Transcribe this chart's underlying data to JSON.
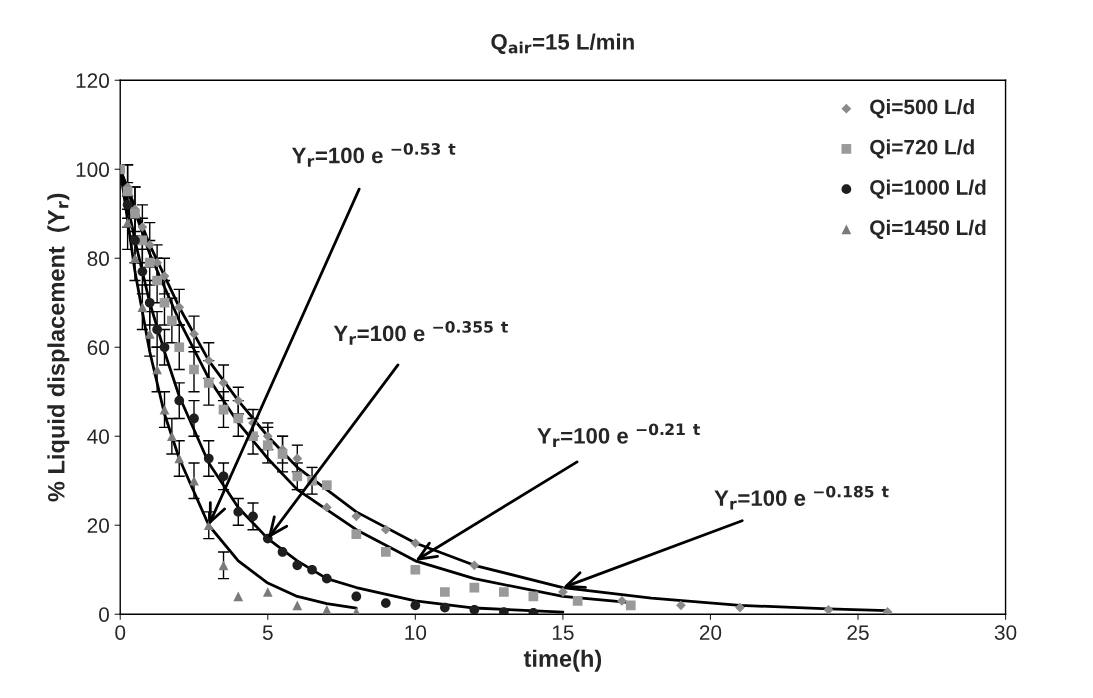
{
  "chart_data": {
    "type": "scatter",
    "title": "Q$_{air}$=15 L/min",
    "xlabel": "time(h)",
    "ylabel": "% Liquid displacement  (Y$_{r}$)",
    "xlim": [
      0,
      30
    ],
    "ylim": [
      0,
      120
    ],
    "xticks": [
      0,
      5,
      10,
      15,
      20,
      25,
      30
    ],
    "yticks": [
      0,
      20,
      40,
      60,
      80,
      100,
      120
    ],
    "grid": false,
    "legend": "top right",
    "series": [
      {
        "name": "Qi=500 L/d",
        "color": "#8a8a8a",
        "marker": "diamond",
        "x": [
          0.25,
          0.5,
          0.75,
          1,
          1.25,
          1.5,
          2,
          2.5,
          3,
          3.5,
          4,
          4.5,
          5,
          5.5,
          6,
          7,
          8,
          9,
          10,
          12,
          15,
          17,
          19,
          21,
          24,
          26
        ],
        "values": [
          96,
          91,
          87,
          83,
          79,
          76,
          69,
          63,
          57,
          52,
          48,
          43,
          40,
          37,
          35,
          24,
          22,
          19,
          16,
          11,
          5,
          3,
          2,
          1.5,
          1,
          0.5
        ],
        "errors": [
          5,
          5,
          5,
          5,
          4,
          4,
          4,
          4,
          4,
          4,
          3,
          3,
          3,
          3,
          3,
          null,
          null,
          null,
          null,
          null,
          null,
          null,
          null,
          null,
          null,
          null
        ]
      },
      {
        "name": "Qi=720 L/d",
        "color": "#9a9a9a",
        "marker": "square",
        "x": [
          0,
          0.25,
          0.5,
          0.75,
          1,
          1.25,
          1.5,
          1.75,
          2,
          2.5,
          3,
          3.5,
          4,
          4.5,
          5,
          5.5,
          6,
          6.5,
          7,
          8,
          9,
          10,
          11,
          12,
          13,
          14,
          15.5,
          17.3
        ],
        "values": [
          100,
          95,
          90,
          84,
          79,
          75,
          70,
          66,
          60,
          55,
          52,
          46,
          44,
          40,
          38,
          36,
          31,
          30,
          29,
          18,
          14,
          10,
          5,
          6,
          5,
          4,
          3,
          2
        ],
        "errors": [
          null,
          6,
          6,
          5,
          5,
          5,
          5,
          5,
          5,
          5,
          5,
          4,
          4,
          4,
          4,
          4,
          3,
          3,
          null,
          null,
          null,
          null,
          null,
          null,
          null,
          null,
          null,
          null
        ]
      },
      {
        "name": "Qi=1000 L/d",
        "color": "#1e1e1e",
        "marker": "circle",
        "x": [
          0.25,
          0.5,
          0.75,
          1,
          1.25,
          1.5,
          2,
          2.5,
          3,
          3.5,
          4,
          4.5,
          5,
          5.5,
          6,
          6.5,
          7,
          8,
          9,
          10,
          11,
          12,
          13,
          14
        ],
        "values": [
          92,
          84,
          77,
          70,
          64,
          60,
          48,
          44,
          35,
          31,
          23,
          22,
          17,
          14,
          11,
          10,
          8,
          4,
          2.5,
          2,
          1.5,
          1,
          0.5,
          0.3
        ],
        "errors": [
          5,
          5,
          5,
          5,
          4,
          4,
          4,
          4,
          4,
          3,
          3,
          3,
          null,
          null,
          null,
          null,
          null,
          null,
          null,
          null,
          null,
          null,
          null,
          null
        ]
      },
      {
        "name": "Qi=1450 L/d",
        "color": "#7a7a7a",
        "marker": "triangle",
        "x": [
          0.25,
          0.5,
          0.75,
          1,
          1.25,
          1.5,
          1.75,
          2,
          2.5,
          3,
          3.5,
          4,
          5,
          6,
          7,
          8
        ],
        "values": [
          88,
          80,
          69,
          63,
          55,
          46,
          40,
          35,
          30,
          20,
          11,
          4,
          5,
          2,
          1,
          0.5
        ],
        "errors": [
          6,
          5,
          5,
          5,
          5,
          4,
          4,
          4,
          4,
          3,
          3,
          null,
          null,
          null,
          null,
          null
        ]
      },
      {
        "type": "line",
        "color": "#000000",
        "x": [
          0,
          1,
          2,
          3,
          4,
          5,
          6,
          8,
          10,
          12,
          15,
          18,
          21,
          24,
          26
        ],
        "values": [
          100,
          83,
          69,
          57,
          48,
          40,
          33,
          23,
          16,
          11,
          6,
          3.6,
          2,
          1.2,
          0.8
        ]
      },
      {
        "type": "line",
        "color": "#000000",
        "x": [
          0,
          1,
          2,
          3,
          4,
          5,
          6,
          8,
          10,
          12,
          15,
          17.3
        ],
        "values": [
          100,
          81,
          66,
          53,
          43,
          35,
          28,
          19,
          12,
          8,
          4,
          2.6
        ]
      },
      {
        "type": "line",
        "color": "#000000",
        "x": [
          0,
          0.5,
          1,
          1.5,
          2,
          3,
          4,
          5,
          6,
          7,
          8,
          10,
          12,
          15
        ],
        "values": [
          100,
          84,
          70,
          59,
          49,
          34,
          24,
          17,
          12,
          8,
          6,
          3,
          1.4,
          0.5
        ]
      },
      {
        "type": "line",
        "color": "#000000",
        "x": [
          0,
          0.5,
          1,
          1.5,
          2,
          3,
          4,
          5,
          6,
          7,
          8
        ],
        "values": [
          100,
          77,
          59,
          45,
          35,
          20,
          12,
          7,
          4,
          2.4,
          1.4
        ]
      }
    ],
    "annotations": [
      {
        "text": "Y$_{r}$=100 e $^{−0.53}$ $^{t}$",
        "x": 3,
        "y": 20
      },
      {
        "text": "Y$_{r}$=100 e $^{−0.355}$ $^{t}$",
        "x": 5,
        "y": 17
      },
      {
        "text": "Y$_{r}$=100 e $^{−0.21}$ $^{t}$",
        "x": 10,
        "y": 12
      },
      {
        "text": "Y$_{r}$=100 e $^{−0.185}$ $^{t}$",
        "x": 15,
        "y": 6
      }
    ]
  }
}
